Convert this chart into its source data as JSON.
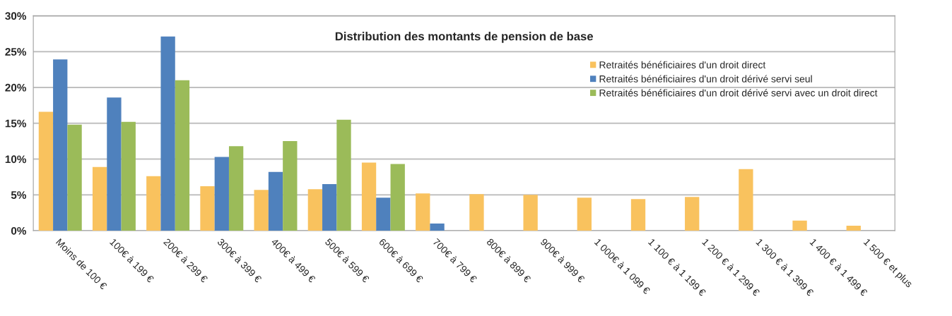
{
  "chart_data": {
    "type": "bar",
    "title": "Distribution des montants de pension de base",
    "categories": [
      "Moins de 100 €",
      "100€ à 199 €",
      "200€ à 299 €",
      "300€ à 399 €",
      "400€ à 499 €",
      "500€ à 599 €",
      "600€ à 699 €",
      "700€ à 799 €",
      "800€ à 899 €",
      "900€ à 999 €",
      "1 000€ à 1 099 €",
      "1 100 € à 1 199 €",
      "1 200 € à 1 299 €",
      "1 300 € à 1 399 €",
      "1 400 € à 1 499 €",
      "1 500 € et plus"
    ],
    "series": [
      {
        "name": "Retraités bénéficiaires d'un droit direct",
        "color": "#f9c25e",
        "values": [
          16.6,
          8.9,
          7.6,
          6.2,
          5.7,
          5.8,
          9.5,
          5.2,
          5.1,
          5.0,
          4.6,
          4.4,
          4.7,
          8.6,
          1.4,
          0.7
        ]
      },
      {
        "name": "Retraités bénéficiaires d'un droit dérivé servi seul",
        "color": "#4f81bd",
        "values": [
          23.9,
          18.6,
          27.1,
          10.3,
          8.2,
          6.5,
          4.6,
          1.0,
          null,
          null,
          null,
          null,
          null,
          null,
          null,
          null
        ]
      },
      {
        "name": "Retraités bénéficiaires d'un droit dérivé servi avec un droit direct",
        "color": "#9bbb59",
        "values": [
          14.8,
          15.2,
          21.0,
          11.8,
          12.5,
          15.5,
          9.3,
          null,
          null,
          null,
          null,
          null,
          null,
          null,
          null,
          null
        ]
      }
    ],
    "ylim": [
      0,
      30
    ],
    "yticks": [
      {
        "value": 0,
        "label": "0%"
      },
      {
        "value": 5,
        "label": "5%"
      },
      {
        "value": 10,
        "label": "10%"
      },
      {
        "value": 15,
        "label": "15%"
      },
      {
        "value": 20,
        "label": "20%"
      },
      {
        "value": 25,
        "label": "25%"
      },
      {
        "value": 30,
        "label": "30%"
      }
    ],
    "grid": "y",
    "legend": "top right"
  }
}
